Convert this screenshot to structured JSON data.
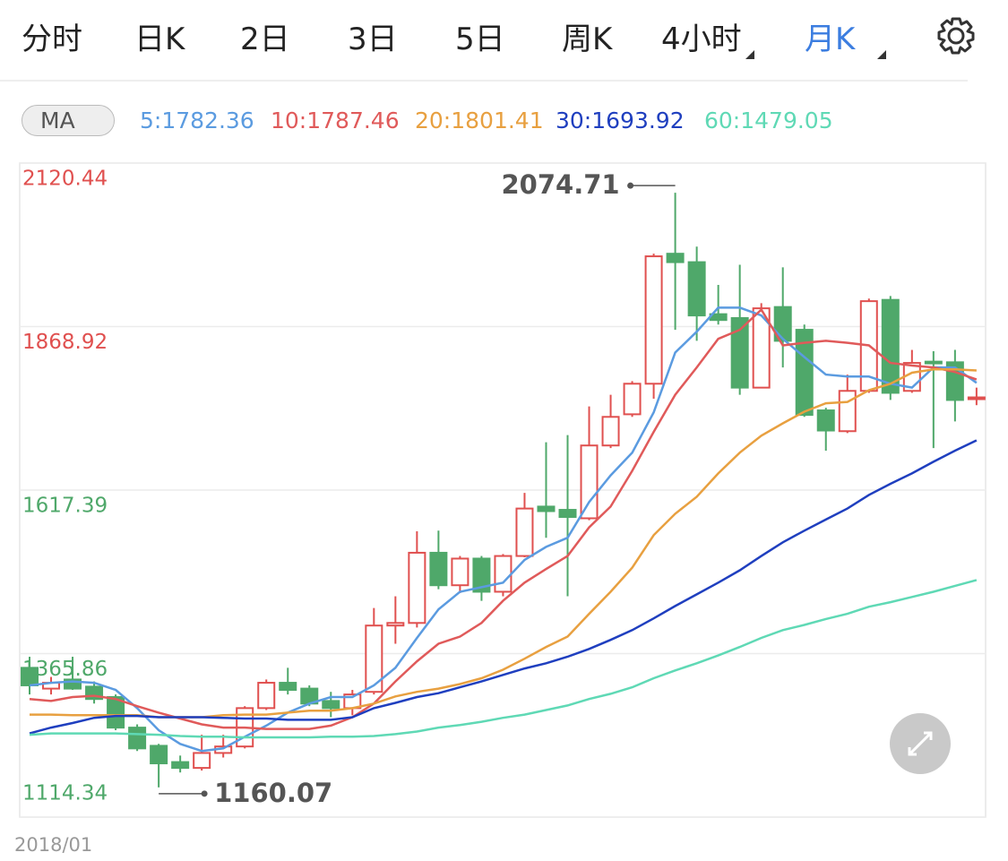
{
  "tabs": {
    "items": [
      "分时",
      "日K",
      "2日",
      "3日",
      "5日",
      "周K",
      "4小时",
      "月K"
    ],
    "active": 7
  },
  "indicator": {
    "label": "MA"
  },
  "chart_data": {
    "type": "candlestick",
    "categories": [
      "2018/01",
      null,
      null,
      null,
      null,
      null,
      null,
      null,
      null,
      null,
      null,
      null,
      null,
      null,
      null,
      null,
      null,
      null,
      null,
      null,
      null,
      null,
      null,
      null,
      null,
      null,
      null,
      null,
      null,
      null,
      null,
      null,
      null,
      null,
      null,
      null,
      null,
      null,
      null,
      null,
      null,
      null,
      null,
      null,
      null
    ],
    "open": [
      1344,
      1312,
      1326,
      1315,
      1299,
      1252,
      1224,
      1199,
      1190,
      1213,
      1223,
      1282,
      1321,
      1312,
      1293,
      1282,
      1307,
      1409,
      1413,
      1521,
      1471,
      1512,
      1461,
      1516,
      1592,
      1587,
      1574,
      1686,
      1734,
      1781,
      1981,
      1968,
      1888,
      1882,
      1775,
      1899,
      1864,
      1740,
      1708,
      1770,
      1910,
      1770,
      1815,
      1814,
      1758
    ],
    "high": [
      1361,
      1330,
      1361,
      1323,
      1303,
      1257,
      1227,
      1209,
      1241,
      1241,
      1285,
      1326,
      1344,
      1317,
      1307,
      1310,
      1436,
      1454,
      1554,
      1555,
      1516,
      1516,
      1519,
      1613,
      1691,
      1702,
      1746,
      1764,
      1785,
      1981,
      2074.71,
      1992,
      1933,
      1964,
      1905,
      1960,
      1872,
      1744,
      1795,
      1912,
      1916,
      1833,
      1831,
      1833,
      1775
    ],
    "low": [
      1303,
      1303,
      1310,
      1289,
      1248,
      1216,
      1160.07,
      1183,
      1186,
      1206,
      1220,
      1279,
      1303,
      1285,
      1268,
      1271,
      1303,
      1381,
      1406,
      1465,
      1459,
      1447,
      1454,
      1514,
      1544,
      1454,
      1571,
      1682,
      1730,
      1758,
      1864,
      1847,
      1872,
      1764,
      1774,
      1806,
      1730,
      1678,
      1705,
      1767,
      1756,
      1767,
      1682,
      1723,
      1748
    ],
    "close": [
      1317,
      1321,
      1312,
      1296,
      1252,
      1220,
      1197,
      1190,
      1213,
      1223,
      1282,
      1321,
      1310,
      1289,
      1282,
      1303,
      1409,
      1413,
      1521,
      1471,
      1512,
      1461,
      1516,
      1589,
      1585,
      1576,
      1686,
      1730,
      1781,
      1977,
      1968,
      1886,
      1879,
      1775,
      1897,
      1847,
      1733,
      1709,
      1770,
      1908,
      1767,
      1813,
      1813,
      1756,
      1760
    ],
    "up_color": "#e0504f",
    "down_color": "#4fa86a",
    "series": [
      {
        "name": "5:1782.36",
        "color": "#5b9be0",
        "values": [
          1317,
          1321,
          1323,
          1321,
          1310,
          1282,
          1248,
          1227,
          1216,
          1220,
          1238,
          1255,
          1275,
          1289,
          1299,
          1299,
          1317,
          1344,
          1390,
          1434,
          1461,
          1468,
          1475,
          1510,
          1530,
          1544,
          1599,
          1640,
          1675,
          1737,
          1829,
          1861,
          1898,
          1898,
          1886,
          1850,
          1822,
          1795,
          1792,
          1792,
          1781,
          1775,
          1806,
          1806,
          1782.36
        ]
      },
      {
        "name": "10:1787.46",
        "color": "#e05a5a",
        "values": [
          1296,
          1293,
          1299,
          1301,
          1296,
          1285,
          1275,
          1266,
          1257,
          1252,
          1252,
          1250,
          1250,
          1250,
          1255,
          1268,
          1289,
          1323,
          1354,
          1381,
          1392,
          1413,
          1447,
          1475,
          1496,
          1516,
          1560,
          1592,
          1647,
          1707,
          1764,
          1806,
          1850,
          1864,
          1895,
          1840,
          1844,
          1847,
          1844,
          1840,
          1813,
          1809,
          1806,
          1799,
          1787.46
        ]
      },
      {
        "name": "20:1801.41",
        "color": "#e8a040",
        "values": [
          1272,
          1272,
          1271,
          1271,
          1271,
          1271,
          1268,
          1268,
          1268,
          1271,
          1272,
          1272,
          1275,
          1278,
          1278,
          1282,
          1289,
          1300,
          1307,
          1312,
          1319,
          1328,
          1341,
          1358,
          1376,
          1392,
          1427,
          1461,
          1498,
          1548,
          1581,
          1607,
          1643,
          1675,
          1701,
          1720,
          1738,
          1751,
          1753,
          1771,
          1781,
          1798,
          1803,
          1803,
          1801.41
        ]
      },
      {
        "name": "30:1693.92",
        "color": "#1f3fbf",
        "values": [
          1243,
          1252,
          1259,
          1267,
          1270,
          1270,
          1268,
          1268,
          1268,
          1267,
          1266,
          1266,
          1264,
          1264,
          1264,
          1268,
          1282,
          1290,
          1299,
          1305,
          1314,
          1323,
          1333,
          1343,
          1351,
          1361,
          1373,
          1387,
          1402,
          1420,
          1439,
          1457,
          1475,
          1494,
          1516,
          1537,
          1555,
          1572,
          1589,
          1610,
          1627,
          1643,
          1661,
          1678,
          1693.92
        ]
      },
      {
        "name": "60:1479.05",
        "color": "#5fd9b5",
        "values": [
          1241,
          1243,
          1243,
          1243,
          1243,
          1242,
          1241,
          1239,
          1238,
          1238,
          1237,
          1237,
          1237,
          1237,
          1238,
          1238,
          1239,
          1242,
          1246,
          1252,
          1256,
          1261,
          1267,
          1272,
          1279,
          1286,
          1296,
          1304,
          1314,
          1328,
          1340,
          1351,
          1363,
          1376,
          1390,
          1402,
          1410,
          1419,
          1427,
          1438,
          1445,
          1453,
          1461,
          1470,
          1479.05
        ]
      }
    ],
    "ylim": [
      1114.34,
      2120.44
    ],
    "yticks": [
      1114.34,
      1365.86,
      1617.39,
      1868.92,
      2120.44
    ],
    "grid": true
  }
}
